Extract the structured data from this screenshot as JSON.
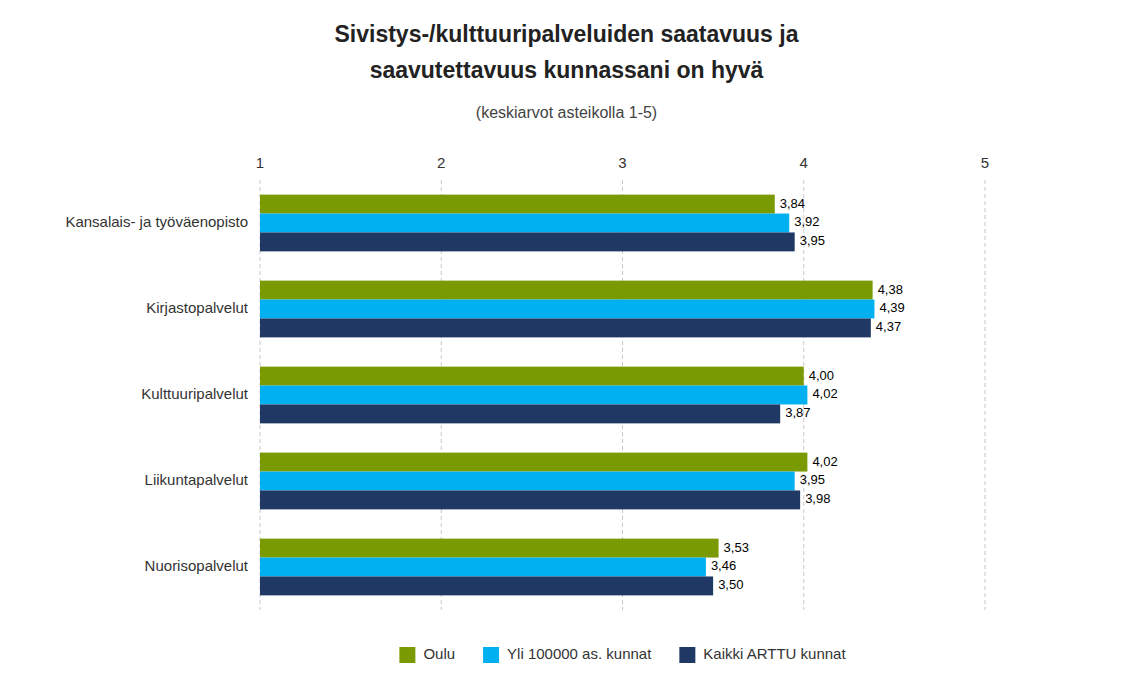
{
  "chart_data": {
    "type": "bar",
    "orientation": "horizontal",
    "title": [
      "Sivistys-/kulttuuripalveluiden saatavuus ja",
      "saavutettavuus kunnassani on hyvä"
    ],
    "subtitle": "(keskiarvot asteikolla 1-5)",
    "categories": [
      "Kansalais- ja työväenopisto",
      "Kirjastopalvelut",
      "Kulttuuripalvelut",
      "Liikuntapalvelut",
      "Nuorisopalvelut"
    ],
    "series": [
      {
        "name": "Oulu",
        "color": "#7a9a01",
        "values": [
          3.84,
          4.38,
          4.0,
          4.02,
          3.53
        ],
        "value_labels": [
          "3,84",
          "4,38",
          "4,00",
          "4,02",
          "3,53"
        ]
      },
      {
        "name": "Yli 100000 as. kunnat",
        "color": "#00b0f0",
        "values": [
          3.92,
          4.39,
          4.02,
          3.95,
          3.46
        ],
        "value_labels": [
          "3,92",
          "4,39",
          "4,02",
          "3,95",
          "3,46"
        ]
      },
      {
        "name": "Kaikki ARTTU kunnat",
        "color": "#1f3864",
        "values": [
          3.95,
          4.37,
          3.87,
          3.98,
          3.5
        ],
        "value_labels": [
          "3,95",
          "4,37",
          "3,87",
          "3,98",
          "3,50"
        ]
      }
    ],
    "xlim": [
      1,
      5
    ],
    "xticks": [
      1,
      2,
      3,
      4,
      5
    ],
    "grid": true,
    "data_labels": true,
    "legend": "bottom"
  }
}
